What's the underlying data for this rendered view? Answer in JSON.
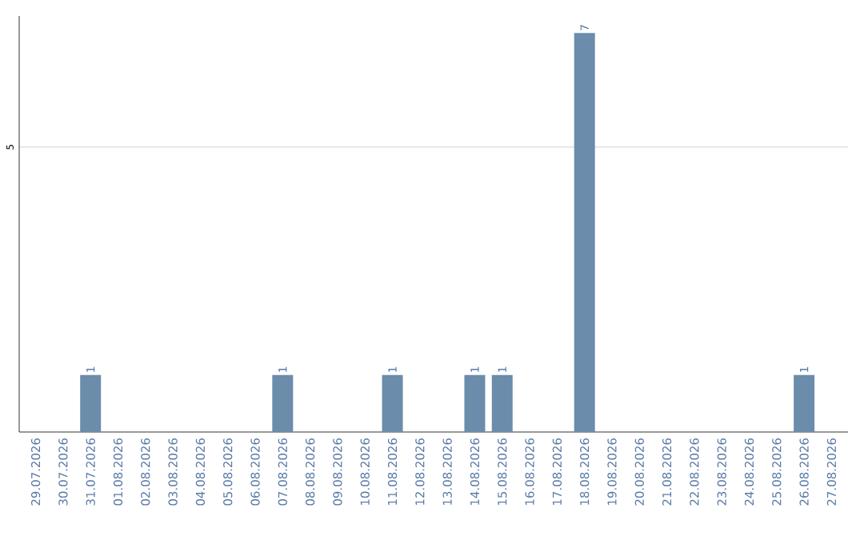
{
  "chart_data": {
    "type": "bar",
    "categories": [
      "29.07.2026",
      "30.07.2026",
      "31.07.2026",
      "01.08.2026",
      "02.08.2026",
      "03.08.2026",
      "04.08.2026",
      "05.08.2026",
      "06.08.2026",
      "07.08.2026",
      "08.08.2026",
      "09.08.2026",
      "10.08.2026",
      "11.08.2026",
      "12.08.2026",
      "13.08.2026",
      "14.08.2026",
      "15.08.2026",
      "16.08.2026",
      "17.08.2026",
      "18.08.2026",
      "19.08.2026",
      "20.08.2026",
      "21.08.2026",
      "22.08.2026",
      "23.08.2026",
      "24.08.2026",
      "25.08.2026",
      "26.08.2026",
      "27.08.2026"
    ],
    "values": [
      0,
      0,
      1,
      0,
      0,
      0,
      0,
      0,
      0,
      1,
      0,
      0,
      0,
      1,
      0,
      0,
      1,
      1,
      0,
      0,
      7,
      0,
      0,
      0,
      0,
      0,
      0,
      0,
      1,
      0
    ],
    "color": "#6b8cab",
    "value_labels": [
      null,
      null,
      "1",
      null,
      null,
      null,
      null,
      null,
      null,
      "1",
      null,
      null,
      null,
      "1",
      null,
      null,
      "1",
      "1",
      null,
      null,
      "7",
      null,
      null,
      null,
      null,
      null,
      null,
      null,
      "1",
      null
    ],
    "ylim": [
      0,
      7.3
    ],
    "yticks": [
      5
    ],
    "grid": "y"
  }
}
